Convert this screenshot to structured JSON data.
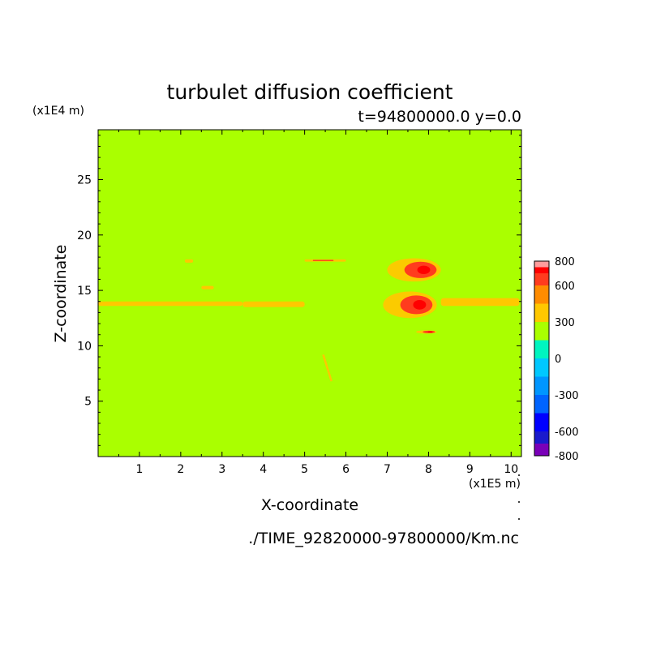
{
  "chart_data": {
    "type": "heatmap",
    "title": "turbulet diffusion coefficient",
    "subtitle": "t=94800000.0 y=0.0",
    "xlabel": "X-coordinate",
    "ylabel": "Z-coordinate",
    "x_scale_label": "(x1E5 m)",
    "y_scale_label": "(x1E4 m)",
    "footer": "./TIME_92820000-97800000/Km.nc",
    "xlim": [
      0,
      10.25
    ],
    "ylim": [
      0,
      29.5
    ],
    "x_ticks": [
      1,
      2,
      3,
      4,
      5,
      6,
      7,
      8,
      9,
      10
    ],
    "y_ticks": [
      5,
      10,
      15,
      20,
      25
    ],
    "background_value_band": "0 to 300",
    "colorbar": {
      "labels": [
        "800",
        "600",
        "300",
        "0",
        "-300",
        "-600",
        "-800"
      ],
      "label_values": [
        800,
        600,
        300,
        0,
        -300,
        -600,
        -800
      ],
      "bands": [
        {
          "from": -800,
          "to": -700,
          "color": "#7a00b8"
        },
        {
          "from": -700,
          "to": -600,
          "color": "#1a1acc"
        },
        {
          "from": -600,
          "to": -450,
          "color": "#0000ff"
        },
        {
          "from": -450,
          "to": -300,
          "color": "#0064ff"
        },
        {
          "from": -300,
          "to": -150,
          "color": "#0096ff"
        },
        {
          "from": -150,
          "to": 0,
          "color": "#00c8ff"
        },
        {
          "from": 0,
          "to": 150,
          "color": "#00f5c0"
        },
        {
          "from": 150,
          "to": 300,
          "color": "#aaff00"
        },
        {
          "from": 300,
          "to": 450,
          "color": "#ffc800"
        },
        {
          "from": 450,
          "to": 600,
          "color": "#ff8c00"
        },
        {
          "from": 600,
          "to": 700,
          "color": "#ff3c1e"
        },
        {
          "from": 700,
          "to": 750,
          "color": "#ff0000"
        },
        {
          "from": 750,
          "to": 800,
          "color": "#ff9c9c"
        }
      ]
    },
    "features": [
      {
        "name": "main-layer-left",
        "x": [
          0,
          3.5
        ],
        "z": [
          13.6,
          14.0
        ],
        "value": 350
      },
      {
        "name": "main-layer-mid",
        "x": [
          3.5,
          5.0
        ],
        "z": [
          13.5,
          14.0
        ],
        "value": 350
      },
      {
        "name": "main-layer-right",
        "x": [
          8.3,
          10.2
        ],
        "z": [
          13.6,
          14.3
        ],
        "value": 350
      },
      {
        "name": "upper-streak",
        "x": [
          5.0,
          6.0
        ],
        "z": [
          17.6,
          17.8
        ],
        "value": 350
      },
      {
        "name": "upper-streak-red",
        "x": [
          5.2,
          5.7
        ],
        "z": [
          17.65,
          17.75
        ],
        "value": 650
      },
      {
        "name": "small-blob-2.2",
        "x": [
          2.1,
          2.3
        ],
        "z": [
          17.5,
          17.8
        ],
        "value": 350
      },
      {
        "name": "small-blob-2.6",
        "x": [
          2.5,
          2.8
        ],
        "z": [
          15.1,
          15.4
        ],
        "value": 350
      },
      {
        "name": "storm-upper",
        "x": [
          7.0,
          8.3
        ],
        "z": [
          15.8,
          17.9
        ],
        "value": 650
      },
      {
        "name": "storm-lower",
        "x": [
          6.9,
          8.2
        ],
        "z": [
          12.5,
          14.9
        ],
        "value": 650
      },
      {
        "name": "storm-base",
        "x": [
          7.7,
          8.2
        ],
        "z": [
          11.1,
          11.4
        ],
        "value": 650
      },
      {
        "name": "oblique-streak",
        "x": [
          5.45,
          5.65
        ],
        "z": [
          6.8,
          9.2
        ],
        "value": 350
      }
    ]
  }
}
